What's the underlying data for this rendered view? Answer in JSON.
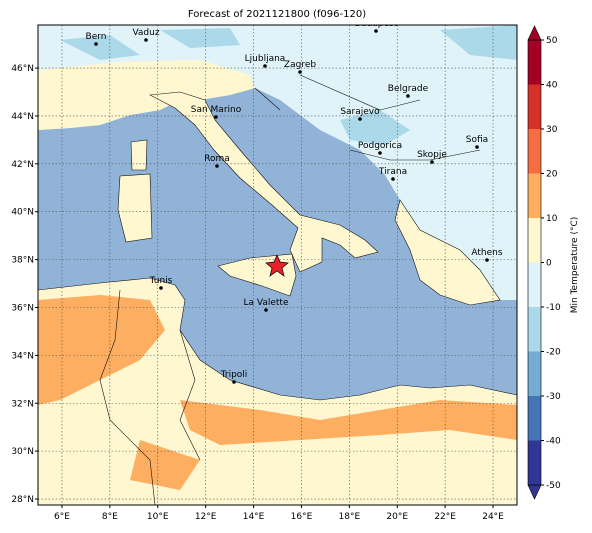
{
  "map": {
    "title": "Forecast of 2021121800 (f096-120)",
    "xlim": [
      5,
      25
    ],
    "ylim": [
      27.75,
      47.8
    ],
    "xticks": [
      {
        "value": 6,
        "label": "6°E"
      },
      {
        "value": 8,
        "label": "8°E"
      },
      {
        "value": 10,
        "label": "10°E"
      },
      {
        "value": 12,
        "label": "12°E"
      },
      {
        "value": 14,
        "label": "14°E"
      },
      {
        "value": 16,
        "label": "16°E"
      },
      {
        "value": 18,
        "label": "18°E"
      },
      {
        "value": 20,
        "label": "20°E"
      },
      {
        "value": 22,
        "label": "22°E"
      },
      {
        "value": 24,
        "label": "24°E"
      }
    ],
    "yticks": [
      {
        "value": 28,
        "label": "28°N"
      },
      {
        "value": 30,
        "label": "30°N"
      },
      {
        "value": 32,
        "label": "32°N"
      },
      {
        "value": 34,
        "label": "34°N"
      },
      {
        "value": 36,
        "label": "36°N"
      },
      {
        "value": 38,
        "label": "38°N"
      },
      {
        "value": 40,
        "label": "40°N"
      },
      {
        "value": 42,
        "label": "42°N"
      },
      {
        "value": 44,
        "label": "44°N"
      },
      {
        "value": 46,
        "label": "46°N"
      }
    ],
    "grid": true,
    "cities": [
      "Bern",
      "Vaduz",
      "Budapest",
      "Ljubljana",
      "Zagreb",
      "Belgrade",
      "San Marino",
      "Sarajevo",
      "Sofia",
      "Podgorica",
      "Skopje",
      "Roma",
      "Tirana",
      "Athens",
      "Tunis",
      "La Valette",
      "Tripoli"
    ],
    "colorbar": {
      "label": "Min Temperature (°C)",
      "lim": [
        -50,
        50
      ],
      "ticks": [
        -50,
        -40,
        -30,
        -20,
        -10,
        0,
        10,
        20,
        30,
        40,
        50
      ],
      "colors": [
        "#313695",
        "#4575b4",
        "#74add1",
        "#abd9e9",
        "#e0f3f8",
        "#fef7d0",
        "#fdae61",
        "#f46d43",
        "#d73027",
        "#a50026"
      ]
    }
  }
}
